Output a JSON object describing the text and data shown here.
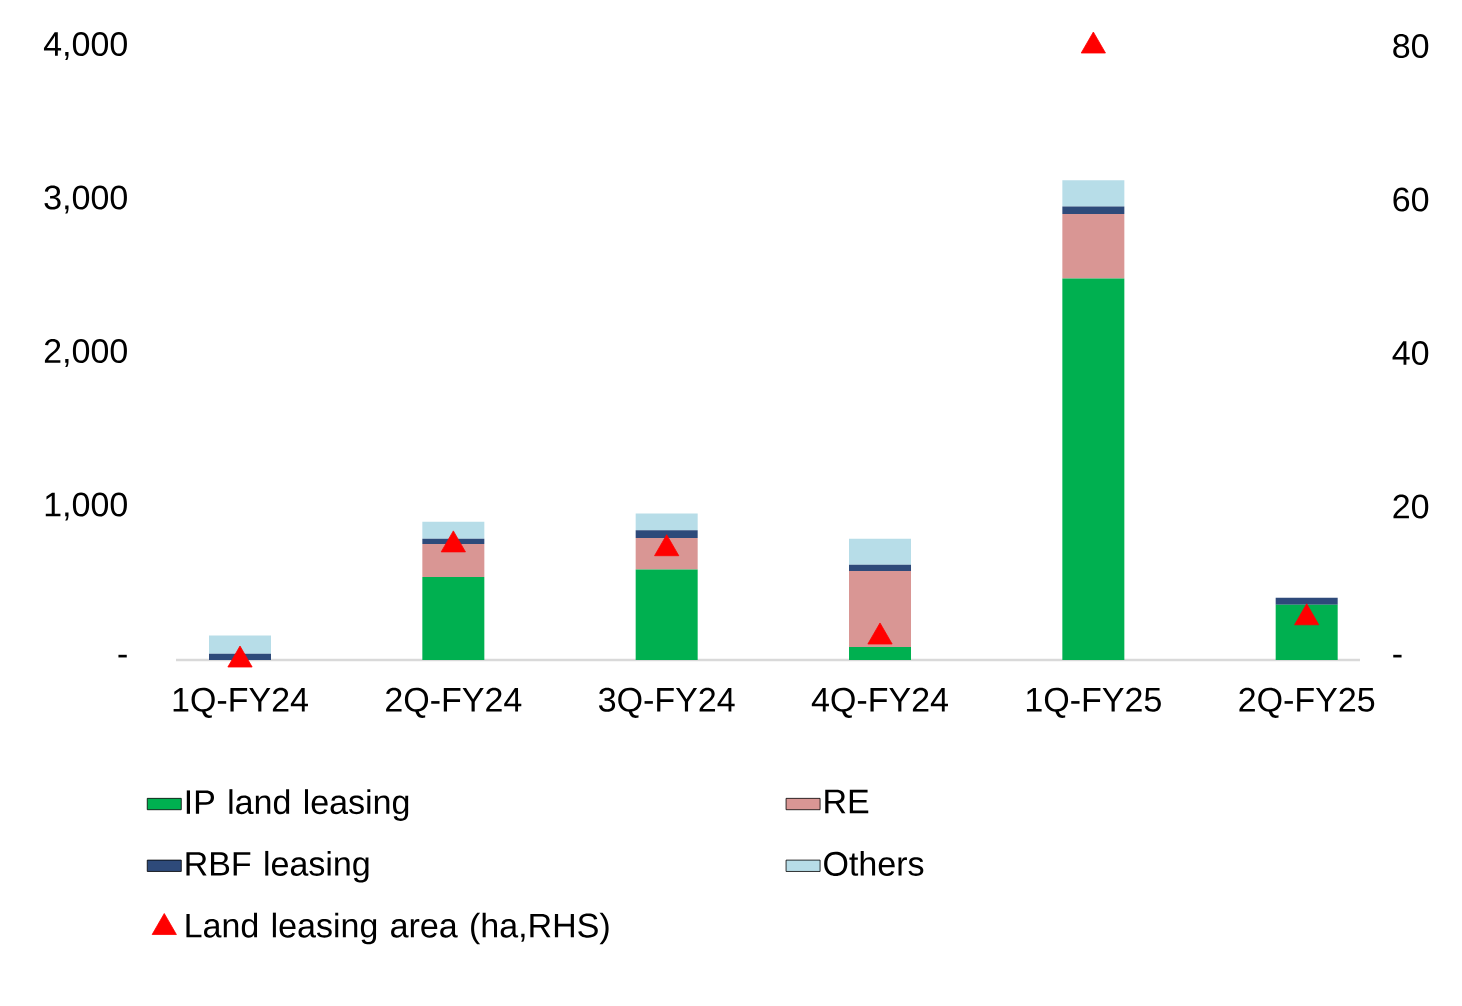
{
  "chart_data": {
    "type": "bar",
    "stacked": true,
    "categories": [
      "1Q-FY24",
      "2Q-FY24",
      "3Q-FY24",
      "4Q-FY24",
      "1Q-FY25",
      "2Q-FY25"
    ],
    "series": [
      {
        "name": "IP land leasing",
        "color": "#00b050",
        "values": [
          0,
          540,
          590,
          85,
          2485,
          360
        ]
      },
      {
        "name": "RE",
        "color": "#d99694",
        "values": [
          0,
          215,
          205,
          495,
          420,
          0
        ]
      },
      {
        "name": "RBF leasing",
        "color": "#2e4a7a",
        "values": [
          40,
          35,
          50,
          40,
          50,
          45
        ]
      },
      {
        "name": "Others",
        "color": "#b7dde8",
        "values": [
          120,
          110,
          110,
          170,
          170,
          0
        ]
      },
      {
        "name": "Land leasing area (ha,RHS)",
        "type": "scatter",
        "axis": "y2",
        "marker": "triangle",
        "color": "#ff0000",
        "values": [
          0,
          15,
          14.5,
          3,
          80,
          5.5
        ]
      }
    ],
    "ylim": [
      0,
      4000
    ],
    "yticks": [
      {
        "value": 0,
        "label": "-"
      },
      {
        "value": 1000,
        "label": "1,000"
      },
      {
        "value": 2000,
        "label": "2,000"
      },
      {
        "value": 3000,
        "label": "3,000"
      },
      {
        "value": 4000,
        "label": "4,000"
      }
    ],
    "y2lim": [
      0,
      80
    ],
    "y2ticks": [
      {
        "value": 0,
        "label": "-"
      },
      20,
      40,
      60,
      80
    ],
    "grid": false,
    "legend": "bottom"
  }
}
